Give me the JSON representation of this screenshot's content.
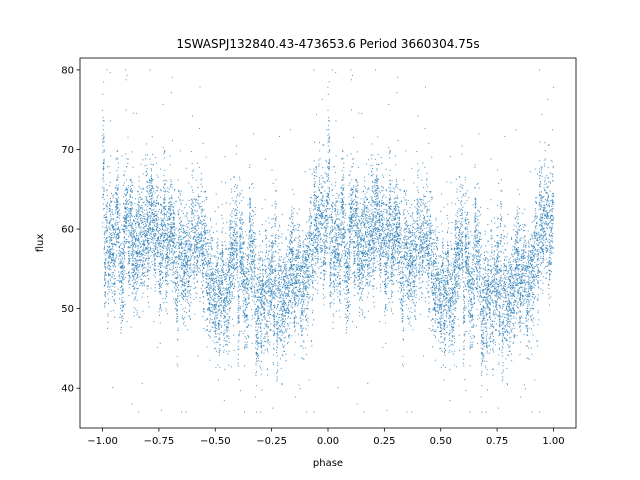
{
  "chart_data": {
    "type": "scatter",
    "title": "1SWASPJ132840.43-473653.6 Period 3660304.75s",
    "xlabel": "phase",
    "ylabel": "flux",
    "xlim": [
      -1.1,
      1.1
    ],
    "ylim": [
      35,
      81.5
    ],
    "xticks": [
      -1.0,
      -0.75,
      -0.5,
      -0.25,
      0.0,
      0.25,
      0.5,
      0.75,
      1.0
    ],
    "xtick_labels": [
      "−1.00",
      "−0.75",
      "−0.50",
      "−0.25",
      "0.00",
      "0.25",
      "0.50",
      "0.75",
      "1.00"
    ],
    "yticks": [
      40,
      50,
      60,
      70,
      80
    ],
    "ytick_labels": [
      "40",
      "50",
      "60",
      "70",
      "80"
    ],
    "grid": false,
    "point_color": "#1f77b4",
    "folded": true,
    "approx_mean_flux_by_phase": {
      "phase": [
        0.0,
        0.05,
        0.1,
        0.15,
        0.2,
        0.25,
        0.3,
        0.35,
        0.4,
        0.45,
        0.5,
        0.55,
        0.6,
        0.65,
        0.7,
        0.75,
        0.8,
        0.85,
        0.9,
        0.95,
        1.0
      ],
      "flux": [
        59,
        58,
        58,
        58,
        60,
        59,
        58,
        57,
        57,
        56,
        54,
        55,
        54,
        54,
        53,
        54,
        53,
        54,
        56,
        59,
        59
      ]
    },
    "approx_scatter_spread": 4.5,
    "approx_point_count": 7000
  }
}
